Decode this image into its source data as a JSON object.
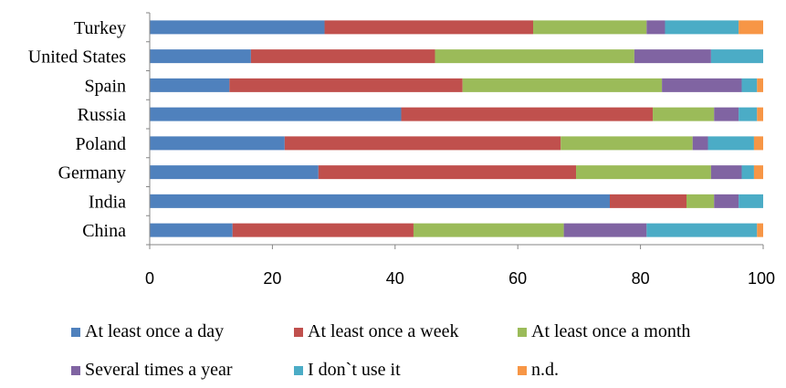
{
  "chart_data": {
    "type": "bar",
    "orientation": "horizontal",
    "stacked": true,
    "categories": [
      "Turkey",
      "United States",
      "Spain",
      "Russia",
      "Poland",
      "Germany",
      "India",
      "China"
    ],
    "xlim": [
      0,
      100
    ],
    "xticks": [
      "0",
      "20",
      "40",
      "60",
      "80",
      "100"
    ],
    "grid": false,
    "legend_position": "bottom",
    "series": [
      {
        "name": "At least once a day",
        "color": "#4f81bd",
        "values": [
          28.5,
          16.5,
          13.0,
          41.0,
          22.0,
          27.5,
          75.0,
          13.5
        ]
      },
      {
        "name": "At least once a week",
        "color": "#c0504d",
        "values": [
          34.0,
          30.0,
          38.0,
          41.0,
          45.0,
          42.0,
          12.5,
          29.5
        ]
      },
      {
        "name": "At least once a month",
        "color": "#9bbb59",
        "values": [
          18.5,
          32.5,
          32.5,
          10.0,
          21.5,
          22.0,
          4.5,
          24.5
        ]
      },
      {
        "name": "Several times a year",
        "color": "#8064a2",
        "values": [
          3.0,
          12.5,
          13.0,
          4.0,
          2.5,
          5.0,
          4.0,
          13.5
        ]
      },
      {
        "name": "I don`t use it",
        "color": "#4bacc6",
        "values": [
          12.0,
          8.5,
          2.5,
          3.0,
          7.5,
          2.0,
          4.0,
          18.0
        ]
      },
      {
        "name": "n.d.",
        "color": "#f79646",
        "values": [
          4.0,
          0.0,
          1.0,
          1.0,
          1.5,
          1.5,
          0.0,
          1.0
        ]
      }
    ]
  }
}
